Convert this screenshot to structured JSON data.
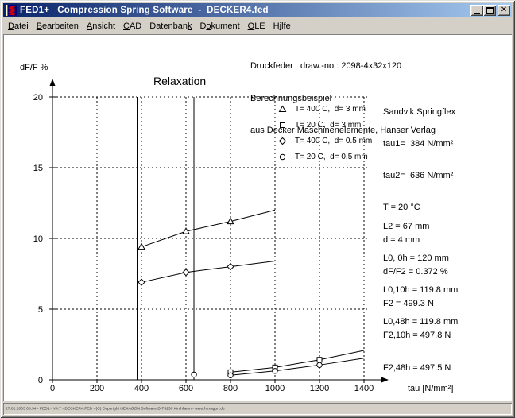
{
  "window": {
    "title": "FED1+   Compression Spring Software  -  DECKER4.fed"
  },
  "colors": {
    "titlebar_left": "#0a246a",
    "titlebar_right": "#a6caf0",
    "chrome": "#d4d0c8",
    "client_bg": "#ffffff",
    "ink": "#000000",
    "spring_icon_red": "#dd0000",
    "spring_icon_blue": "#00007f"
  },
  "menu": {
    "items": [
      {
        "id": "datei",
        "pre": "",
        "key": "D",
        "post": "atei"
      },
      {
        "id": "bearbeiten",
        "pre": "",
        "key": "B",
        "post": "earbeiten"
      },
      {
        "id": "ansicht",
        "pre": "",
        "key": "A",
        "post": "nsicht"
      },
      {
        "id": "cad",
        "pre": "",
        "key": "C",
        "post": "AD"
      },
      {
        "id": "datenbank",
        "pre": "Datenban",
        "key": "k",
        "post": ""
      },
      {
        "id": "dokument",
        "pre": "D",
        "key": "o",
        "post": "kument"
      },
      {
        "id": "ole",
        "pre": "",
        "key": "O",
        "post": "LE"
      },
      {
        "id": "hilfe",
        "pre": "H",
        "key": "i",
        "post": "lfe"
      }
    ]
  },
  "header": {
    "lines": [
      "Druckfeder   draw.-no.: 2098-4x32x120",
      "Berechnungsbeispiel",
      "aus Decker Maschinenelemente, Hanser Verlag"
    ]
  },
  "info_block1": {
    "lines": [
      "Sandvik Springflex",
      "tau1=  384 N/mm²",
      "tau2=  636 N/mm²",
      "T = 20 °C",
      "d = 4 mm",
      "dF/F2 = 0.372 %",
      "F2 = 499.3 N",
      "F2,10h = 497.8 N",
      "F2,48h = 497.5 N"
    ]
  },
  "info_block2": {
    "lines": [
      "L2 = 67 mm",
      "L0, 0h = 120 mm",
      "L0,10h = 119.8 mm",
      "L0,48h = 119.8 mm"
    ]
  },
  "chart_data": {
    "type": "line",
    "title": "Relaxation",
    "xlabel": "tau [N/mm²]",
    "ylabel": "dF/F %",
    "xlim": [
      0,
      1400
    ],
    "ylim": [
      0,
      20
    ],
    "xticks": [
      0,
      200,
      400,
      600,
      800,
      1000,
      1200,
      1400
    ],
    "yticks": [
      0,
      5,
      10,
      15,
      20
    ],
    "grid": "dashed",
    "legend_position": "top-right-inside",
    "vlines": [
      {
        "x": 384,
        "meaning": "tau1"
      },
      {
        "x": 636,
        "meaning": "tau2"
      }
    ],
    "series": [
      {
        "name": "T= 400 C,  d= 3 mm",
        "marker": "triangle",
        "points": [
          [
            400,
            9.4
          ],
          [
            600,
            10.5
          ],
          [
            800,
            11.2
          ]
        ],
        "line_end": [
          1000,
          12.0
        ]
      },
      {
        "name": "T= 20 C,  d= 3 mm",
        "marker": "square",
        "points": [
          [
            800,
            0.54
          ],
          [
            1000,
            0.88
          ],
          [
            1200,
            1.42
          ]
        ],
        "line_end": [
          1400,
          2.08
        ]
      },
      {
        "name": "T= 400 C,  d= 0.5 mm",
        "marker": "diamond",
        "points": [
          [
            400,
            6.9
          ],
          [
            600,
            7.6
          ],
          [
            800,
            8.0
          ]
        ],
        "line_end": [
          1000,
          8.4
        ]
      },
      {
        "name": "T= 20 C,  d= 0.5 mm",
        "marker": "circle",
        "points": [
          [
            800,
            0.32
          ],
          [
            1000,
            0.63
          ],
          [
            1200,
            1.05
          ]
        ],
        "line_end": [
          1400,
          1.53
        ]
      }
    ],
    "extra_points": [
      {
        "marker": "circle",
        "x": 636,
        "y": 0.37,
        "meaning": "operating point dF/F2 at tau2"
      }
    ]
  },
  "status": {
    "text": "27.02.2003 08:34 - FED1+ V4.7 - DECKER4.FED - (C) Copyright HEXAGON Software D-73230 Kirchheim - www.hexagon.de"
  }
}
